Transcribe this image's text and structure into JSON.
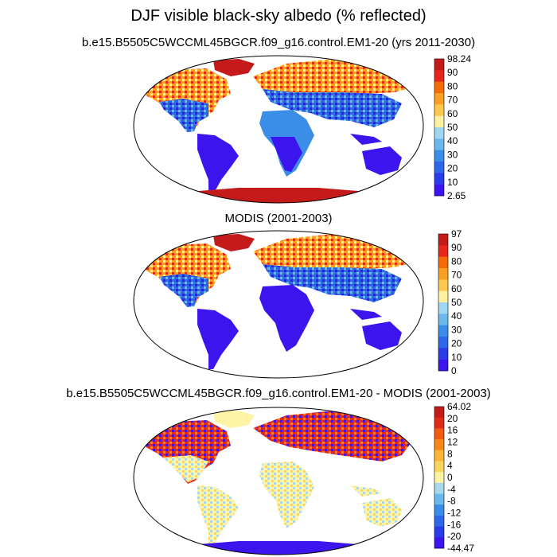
{
  "title": "DJF visible black-sky albedo (% reflected)",
  "panels": [
    {
      "id": "model",
      "title": "b.e15.B5505C5WCCML45BGCR.f09_g16.control.EM1-20 (yrs 2011-2030)",
      "colorbar": {
        "colors": [
          "#3b14ee",
          "#2a3cea",
          "#2e67e8",
          "#3a8ee8",
          "#6bb9ec",
          "#9fd6f2",
          "#fff1a0",
          "#fdc84c",
          "#f9a024",
          "#f76a08",
          "#e8261c",
          "#c51a1a"
        ],
        "labels": [
          "98.24",
          "90",
          "80",
          "70",
          "60",
          "50",
          "40",
          "30",
          "20",
          "10",
          "2.65"
        ]
      }
    },
    {
      "id": "modis",
      "title": "MODIS (2001-2003)",
      "colorbar": {
        "colors": [
          "#3b14ee",
          "#2a3cea",
          "#2e67e8",
          "#3a8ee8",
          "#6bb9ec",
          "#9fd6f2",
          "#fff1a0",
          "#fdc84c",
          "#f9a024",
          "#f76a08",
          "#e8261c",
          "#c51a1a"
        ],
        "labels": [
          "97",
          "90",
          "80",
          "70",
          "60",
          "50",
          "40",
          "30",
          "20",
          "10",
          "0"
        ]
      }
    },
    {
      "id": "diff",
      "title": "b.e15.B5505C5WCCML45BGCR.f09_g16.control.EM1-20 - MODIS (2001-2003)",
      "colorbar": {
        "colors": [
          "#3b14ee",
          "#2a3cea",
          "#2e67e8",
          "#3a8ee8",
          "#6bb9ec",
          "#a8d8ee",
          "#fff4a6",
          "#fdd65e",
          "#fbb434",
          "#f8871a",
          "#f25a10",
          "#e02a1a",
          "#c51a1a"
        ],
        "labels": [
          "64.02",
          "20",
          "16",
          "12",
          "8",
          "4",
          "0",
          "-4",
          "-8",
          "-12",
          "-16",
          "-20",
          "-44.47"
        ]
      }
    }
  ],
  "chart_data": {
    "type": "heatmap",
    "title": "DJF visible black-sky albedo (% reflected)",
    "variable": "visible black-sky albedo",
    "units": "% reflected",
    "season": "DJF",
    "maps": [
      {
        "name": "b.e15.B5505C5WCCML45BGCR.f09_g16.control.EM1-20 (yrs 2011-2030)",
        "min": 2.65,
        "max": 98.24,
        "levels": [
          10,
          20,
          30,
          40,
          50,
          60,
          70,
          80,
          90
        ]
      },
      {
        "name": "MODIS (2001-2003)",
        "min": 0,
        "max": 97,
        "levels": [
          10,
          20,
          30,
          40,
          50,
          60,
          70,
          80,
          90
        ]
      },
      {
        "name": "b.e15.B5505C5WCCML45BGCR.f09_g16.control.EM1-20 - MODIS (2001-2003)",
        "min": -44.47,
        "max": 64.02,
        "levels": [
          -20,
          -16,
          -12,
          -8,
          -4,
          0,
          4,
          8,
          12,
          16,
          20
        ]
      }
    ]
  }
}
